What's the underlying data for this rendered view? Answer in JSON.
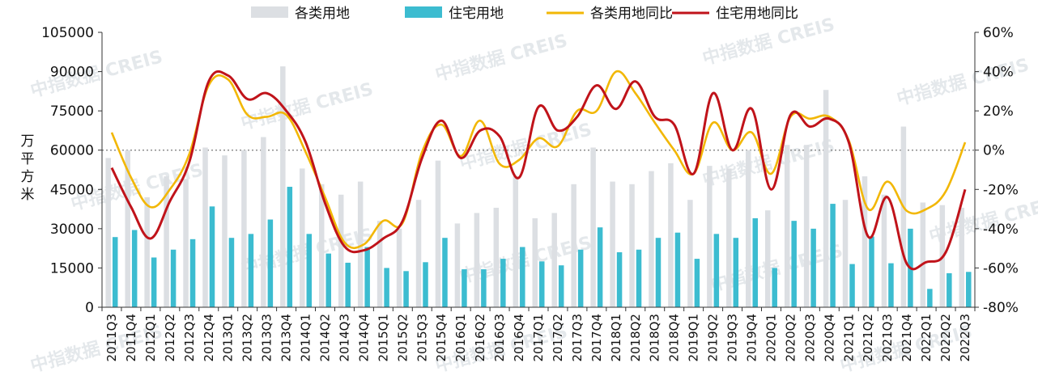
{
  "chart_data": {
    "type": "bar+line",
    "title": "",
    "watermark": "中指数据 CREIS",
    "ylabel_left": "万平方米",
    "ylabel_right": "",
    "ylim_left": [
      0,
      105000
    ],
    "yticks_left": [
      "0",
      "15000",
      "30000",
      "45000",
      "60000",
      "75000",
      "90000",
      "105000"
    ],
    "ylim_right": [
      -80,
      60
    ],
    "yticks_right": [
      "-80%",
      "-60%",
      "-40%",
      "-20%",
      "0%",
      "20%",
      "40%",
      "60%"
    ],
    "zero_line": "dotted",
    "legend_position": "top",
    "categories": [
      "2011Q3",
      "2011Q4",
      "2012Q1",
      "2012Q2",
      "2012Q3",
      "2012Q4",
      "2013Q1",
      "2013Q2",
      "2013Q3",
      "2013Q4",
      "2014Q1",
      "2014Q2",
      "2014Q3",
      "2014Q4",
      "2015Q1",
      "2015Q2",
      "2015Q3",
      "2015Q4",
      "2016Q1",
      "2016Q2",
      "2016Q3",
      "2016Q4",
      "2017Q1",
      "2017Q2",
      "2017Q3",
      "2017Q4",
      "2018Q1",
      "2018Q2",
      "2018Q3",
      "2018Q4",
      "2019Q1",
      "2019Q2",
      "2019Q3",
      "2019Q4",
      "2020Q1",
      "2020Q2",
      "2020Q3",
      "2020Q4",
      "2021Q1",
      "2021Q2",
      "2021Q3",
      "2021Q4",
      "2022Q1",
      "2022Q2",
      "2022Q3"
    ],
    "series": [
      {
        "name": "各类用地",
        "type": "bar",
        "axis": "left",
        "color": "#dcdfe3",
        "values": [
          57000,
          60000,
          42000,
          50000,
          49000,
          61000,
          58000,
          60000,
          65000,
          92000,
          53000,
          47000,
          43000,
          48000,
          33000,
          30000,
          41000,
          56000,
          32000,
          36000,
          38000,
          50000,
          34000,
          36000,
          47000,
          61000,
          48000,
          47000,
          52000,
          55000,
          41000,
          54000,
          53000,
          60000,
          37000,
          62000,
          62000,
          83000,
          41000,
          50000,
          43000,
          69000,
          40000,
          39000,
          38000
        ]
      },
      {
        "name": "住宅用地",
        "type": "bar",
        "axis": "left",
        "color": "#3cbcd0",
        "values": [
          26800,
          29500,
          19000,
          22000,
          26000,
          38500,
          26500,
          28000,
          33500,
          46000,
          28000,
          20500,
          17000,
          23000,
          15000,
          13800,
          17200,
          26500,
          14500,
          14500,
          18500,
          23000,
          17500,
          16000,
          22000,
          30500,
          21000,
          22000,
          26500,
          28500,
          18500,
          28000,
          26500,
          34000,
          15000,
          33000,
          30000,
          39500,
          16500,
          27000,
          16800,
          30000,
          7000,
          13000,
          13500
        ]
      },
      {
        "name": "各类用地同比",
        "type": "line",
        "axis": "right",
        "color": "#f2b705",
        "values": [
          9,
          -14,
          -29,
          -20,
          -2,
          33,
          36,
          18,
          17,
          18,
          -1,
          -24,
          -47,
          -48,
          -36,
          -37,
          -1,
          13,
          -3,
          15,
          -7,
          -5,
          6,
          2,
          20,
          20,
          40,
          29,
          14,
          0,
          -12,
          14,
          0,
          9,
          -12,
          17,
          16,
          17,
          5,
          -30,
          -16,
          -31,
          -30,
          -21,
          4
        ]
      },
      {
        "name": "住宅用地同比",
        "type": "line",
        "axis": "right",
        "color": "#c0131a",
        "values": [
          -9,
          -29,
          -45,
          -26,
          -6,
          35,
          38,
          26,
          29,
          20,
          4,
          -27,
          -49,
          -51,
          -45,
          -36,
          -4,
          15,
          -4,
          10,
          7,
          -14,
          22,
          10,
          17,
          33,
          21,
          35,
          17,
          13,
          -12,
          29,
          0,
          21,
          -20,
          18,
          12,
          16,
          4,
          -44,
          -24,
          -58,
          -57,
          -52,
          -20
        ]
      }
    ]
  }
}
